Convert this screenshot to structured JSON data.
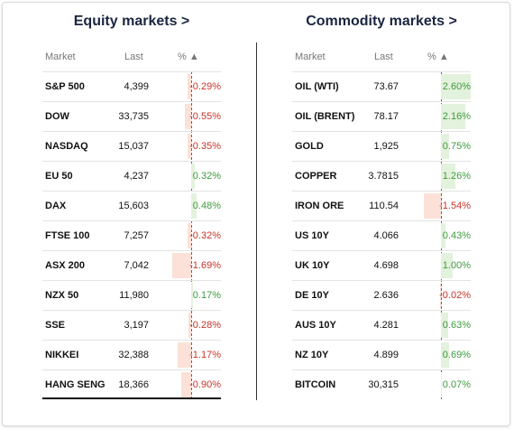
{
  "equity": {
    "title": "Equity markets >",
    "headers": {
      "market": "Market",
      "last": "Last",
      "pct": "% ▲"
    },
    "rows": [
      {
        "market": "S&P 500",
        "last": "4,399",
        "pct": "-0.29%",
        "value": -0.29
      },
      {
        "market": "DOW",
        "last": "33,735",
        "pct": "-0.55%",
        "value": -0.55
      },
      {
        "market": "NASDAQ",
        "last": "15,037",
        "pct": "-0.35%",
        "value": -0.35
      },
      {
        "market": "EU 50",
        "last": "4,237",
        "pct": "0.32%",
        "value": 0.32
      },
      {
        "market": "DAX",
        "last": "15,603",
        "pct": "0.48%",
        "value": 0.48
      },
      {
        "market": "FTSE 100",
        "last": "7,257",
        "pct": "-0.32%",
        "value": -0.32
      },
      {
        "market": "ASX 200",
        "last": "7,042",
        "pct": "-1.69%",
        "value": -1.69
      },
      {
        "market": "NZX 50",
        "last": "11,980",
        "pct": "0.17%",
        "value": 0.17
      },
      {
        "market": "SSE",
        "last": "3,197",
        "pct": "-0.28%",
        "value": -0.28
      },
      {
        "market": "NIKKEI",
        "last": "32,388",
        "pct": "-1.17%",
        "value": -1.17
      },
      {
        "market": "HANG SENG",
        "last": "18,366",
        "pct": "-0.90%",
        "value": -0.9
      }
    ]
  },
  "commodity": {
    "title": "Commodity markets >",
    "headers": {
      "market": "Market",
      "last": "Last",
      "pct": "% ▲"
    },
    "rows": [
      {
        "market": "OIL (WTI)",
        "last": "73.67",
        "pct": "2.60%",
        "value": 2.6
      },
      {
        "market": "OIL (BRENT)",
        "last": "78.17",
        "pct": "2.16%",
        "value": 2.16
      },
      {
        "market": "GOLD",
        "last": "1,925",
        "pct": "0.75%",
        "value": 0.75
      },
      {
        "market": "COPPER",
        "last": "3.7815",
        "pct": "1.26%",
        "value": 1.26
      },
      {
        "market": "IRON ORE",
        "last": "110.54",
        "pct": "-1.54%",
        "value": -1.54
      },
      {
        "market": "US 10Y",
        "last": "4.066",
        "pct": "0.43%",
        "value": 0.43
      },
      {
        "market": "UK 10Y",
        "last": "4.698",
        "pct": "1.00%",
        "value": 1.0
      },
      {
        "market": "DE 10Y",
        "last": "2.636",
        "pct": "-0.02%",
        "value": -0.02
      },
      {
        "market": "AUS 10Y",
        "last": "4.281",
        "pct": "0.63%",
        "value": 0.63
      },
      {
        "market": "NZ 10Y",
        "last": "4.899",
        "pct": "0.69%",
        "value": 0.69
      },
      {
        "market": "BITCOIN",
        "last": "30,315",
        "pct": "0.07%",
        "value": 0.07
      }
    ]
  },
  "colors": {
    "positive_text": "#3e9a3e",
    "negative_text": "#c8342a",
    "positive_bar": "#e3f2dc",
    "negative_bar": "#fbe1d8",
    "title": "#1a2540"
  }
}
